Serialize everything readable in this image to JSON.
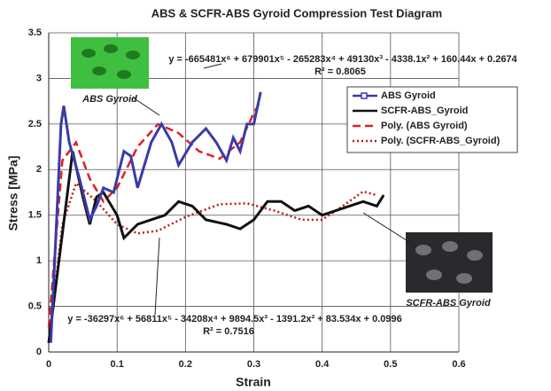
{
  "chart_data": {
    "type": "line",
    "title": "ABS & SCFR-ABS Gyroid Compression Test Diagram",
    "x_label": "Strain",
    "y_label": "Stress [MPa]",
    "xlim": [
      0,
      0.6
    ],
    "xticks": [
      0,
      0.1,
      0.2,
      0.3,
      0.4,
      0.5,
      0.6
    ],
    "ylim": [
      0,
      3.5
    ],
    "yticks": [
      0,
      0.5,
      1,
      1.5,
      2,
      2.5,
      3,
      3.5
    ],
    "grid": true,
    "legend": "right",
    "series": [
      {
        "name": "ABS Gyroid",
        "color": "#3a3aa8",
        "style": "solid",
        "x": [
          0.003,
          0.01,
          0.018,
          0.022,
          0.03,
          0.045,
          0.06,
          0.07,
          0.08,
          0.095,
          0.11,
          0.12,
          0.13,
          0.15,
          0.165,
          0.18,
          0.19,
          0.21,
          0.23,
          0.245,
          0.26,
          0.27,
          0.28,
          0.29,
          0.3,
          0.31
        ],
        "values": [
          0.1,
          1.2,
          2.5,
          2.7,
          2.3,
          1.9,
          1.45,
          1.6,
          1.8,
          1.75,
          2.2,
          2.15,
          1.8,
          2.3,
          2.5,
          2.3,
          2.05,
          2.3,
          2.45,
          2.3,
          2.1,
          2.35,
          2.2,
          2.5,
          2.5,
          2.85
        ]
      },
      {
        "name": "SCFR-ABS_Gyroid",
        "color": "#111111",
        "style": "solid",
        "x": [
          0,
          0.02,
          0.035,
          0.05,
          0.06,
          0.07,
          0.08,
          0.1,
          0.11,
          0.13,
          0.15,
          0.17,
          0.19,
          0.21,
          0.23,
          0.26,
          0.28,
          0.3,
          0.32,
          0.34,
          0.36,
          0.38,
          0.4,
          0.42,
          0.44,
          0.46,
          0.48,
          0.49
        ],
        "values": [
          0.1,
          1.3,
          2.2,
          1.7,
          1.4,
          1.7,
          1.75,
          1.5,
          1.25,
          1.4,
          1.45,
          1.5,
          1.65,
          1.6,
          1.45,
          1.4,
          1.35,
          1.45,
          1.65,
          1.65,
          1.55,
          1.6,
          1.5,
          1.55,
          1.6,
          1.65,
          1.6,
          1.72
        ]
      },
      {
        "name": "Poly. (ABS Gyroid)",
        "color": "#e02020",
        "style": "dashed",
        "x": [
          0,
          0.02,
          0.04,
          0.06,
          0.08,
          0.1,
          0.13,
          0.16,
          0.19,
          0.22,
          0.25,
          0.28,
          0.3,
          0.31
        ],
        "values": [
          0.27,
          2.1,
          2.3,
          1.9,
          1.65,
          1.8,
          2.25,
          2.5,
          2.4,
          2.2,
          2.12,
          2.3,
          2.62,
          2.75
        ]
      },
      {
        "name": "Poly. (SCFR-ABS_Gyroid)",
        "color": "#c01818",
        "style": "dotted",
        "x": [
          0,
          0.02,
          0.04,
          0.07,
          0.1,
          0.13,
          0.16,
          0.2,
          0.25,
          0.29,
          0.33,
          0.37,
          0.4,
          0.43,
          0.46,
          0.48
        ],
        "values": [
          0.1,
          1.4,
          1.85,
          1.65,
          1.4,
          1.3,
          1.33,
          1.48,
          1.62,
          1.63,
          1.55,
          1.45,
          1.45,
          1.6,
          1.76,
          1.72
        ]
      }
    ],
    "annotations": [
      "y = -665481x⁶ + 679901x⁵ - 265283x⁴ + 49130x³ - 4338.1x² + 160.44x + 0.2674",
      "R² = 0.8065",
      "y = -36297x⁶ + 56811x⁵ - 34208x⁴ + 9894.5x³ - 1391.2x² + 83.534x + 0.0996",
      "R² = 0.7516",
      "ABS Gyroid",
      "SCFR-ABS Gyroid"
    ]
  }
}
